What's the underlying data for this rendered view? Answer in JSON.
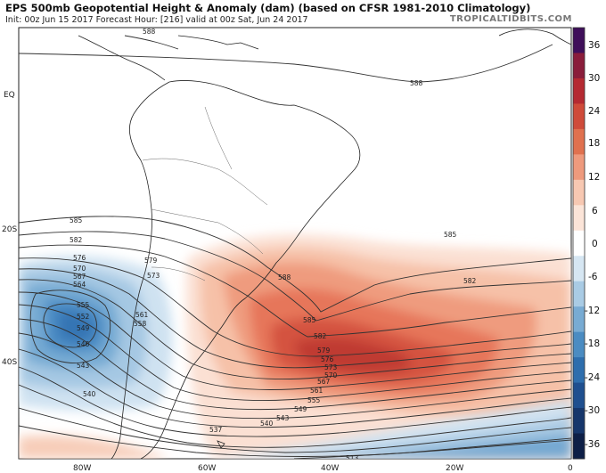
{
  "header": {
    "title": "EPS 500mb Geopotential Height & Anomaly (dam) (based on CFSR 1981-2010 Climatology)",
    "subtitle": "Init: 00z Jun 15 2017   Forecast Hour: [216]   valid at 00z Sat, Jun 24 2017",
    "brand": "TROPICALTIDBITS.COM"
  },
  "map": {
    "lat_labels": [
      "EQ",
      "20S",
      "40S"
    ],
    "lon_labels": [
      "80W",
      "60W",
      "40W",
      "20W",
      "0"
    ],
    "contour_labels": [
      "588",
      "588",
      "585",
      "585",
      "582",
      "582",
      "579",
      "576",
      "573",
      "570",
      "567",
      "564",
      "561",
      "558",
      "555",
      "552",
      "549",
      "546",
      "543",
      "540",
      "537",
      "513",
      "588",
      "585",
      "582",
      "579",
      "576",
      "573",
      "570",
      "567",
      "561",
      "555",
      "549",
      "543",
      "540"
    ],
    "anomaly_colors": {
      "positive": "#e8704f",
      "negative": "#3a84c1"
    }
  },
  "colorbar": {
    "labels": [
      "36",
      "30",
      "24",
      "18",
      "12",
      "6",
      "0",
      "-6",
      "-12",
      "-18",
      "-24",
      "-30",
      "-36"
    ],
    "colors": [
      "#3f0f5a",
      "#8a1d3b",
      "#b52a32",
      "#cf4b3a",
      "#e0714f",
      "#ee9a7d",
      "#f7c8b2",
      "#fbe4d8",
      "#ffffff",
      "#d6e6f2",
      "#a9cbe4",
      "#78abd3",
      "#4b8cc2",
      "#2e6ead",
      "#1f4f8f",
      "#16366b",
      "#0d1f47"
    ]
  }
}
